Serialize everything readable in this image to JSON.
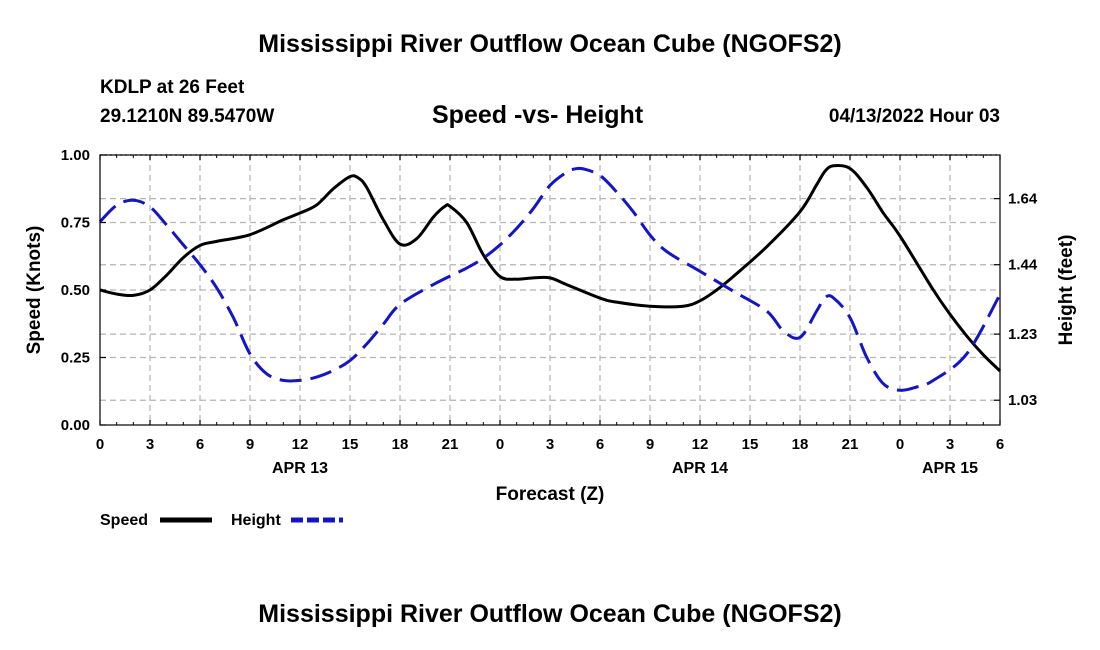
{
  "header": {
    "title": "Mississippi River Outflow Ocean Cube (NGOFS2)",
    "station": "KDLP at 26 Feet",
    "location": "29.1210N  89.5470W",
    "subtitle": "Speed -vs- Height",
    "datetime": "04/13/2022 Hour 03"
  },
  "footer": {
    "title": "Mississippi River Outflow Ocean Cube (NGOFS2)"
  },
  "chart_data": {
    "type": "line",
    "title": "Speed -vs- Height",
    "xlabel": "Forecast (Z)",
    "ylabel": "Speed (Knots)",
    "y2label": "Height (feet)",
    "x_unit": "hours from APR 13 00Z",
    "xlim": [
      0,
      54
    ],
    "ylim": [
      0,
      1.0
    ],
    "y2lim": [
      0.955,
      1.772
    ],
    "x_ticks": [
      0,
      3,
      6,
      9,
      12,
      15,
      18,
      21,
      24,
      27,
      30,
      33,
      36,
      39,
      42,
      45,
      48,
      51,
      54
    ],
    "x_tick_labels": [
      "0",
      "3",
      "6",
      "9",
      "12",
      "15",
      "18",
      "21",
      "0",
      "3",
      "6",
      "9",
      "12",
      "15",
      "18",
      "21",
      "0",
      "3",
      "6"
    ],
    "date_labels": [
      {
        "x": 12,
        "label": "APR 13"
      },
      {
        "x": 36,
        "label": "APR 14"
      },
      {
        "x": 51,
        "label": "APR 15"
      }
    ],
    "y_ticks": [
      0,
      0.25,
      0.5,
      0.75,
      1.0
    ],
    "y_tick_labels": [
      "0.00",
      "0.25",
      "0.50",
      "0.75",
      "1.00"
    ],
    "y2_ticks": [
      1.03,
      1.23,
      1.44,
      1.64
    ],
    "y2_tick_labels": [
      "1.03",
      "1.23",
      "1.44",
      "1.64"
    ],
    "grid": true,
    "legend_position": "bottom-left",
    "series": [
      {
        "name": "Speed",
        "axis": "left",
        "color": "#000000",
        "dash": "solid",
        "x": [
          0,
          1,
          2,
          3,
          4,
          5,
          6,
          7,
          9,
          11,
          12,
          13,
          14,
          15,
          15.5,
          16,
          17,
          18,
          19,
          20,
          20.7,
          21,
          22,
          23,
          24,
          25,
          26,
          27,
          28,
          30,
          31,
          33,
          35,
          36,
          37,
          38,
          40,
          42,
          43,
          43.5,
          44,
          45,
          46,
          47,
          48,
          50,
          51,
          52,
          53,
          54
        ],
        "y": [
          0.5,
          0.485,
          0.48,
          0.5,
          0.555,
          0.62,
          0.665,
          0.68,
          0.705,
          0.76,
          0.785,
          0.815,
          0.875,
          0.92,
          0.915,
          0.88,
          0.76,
          0.67,
          0.69,
          0.77,
          0.81,
          0.81,
          0.75,
          0.63,
          0.55,
          0.54,
          0.545,
          0.545,
          0.52,
          0.47,
          0.455,
          0.44,
          0.44,
          0.46,
          0.5,
          0.55,
          0.66,
          0.79,
          0.89,
          0.94,
          0.96,
          0.95,
          0.88,
          0.785,
          0.7,
          0.5,
          0.41,
          0.33,
          0.26,
          0.2
        ]
      },
      {
        "name": "Height",
        "axis": "right",
        "color": "#1414c8",
        "dash": "dashed",
        "x": [
          0,
          1,
          2,
          3,
          4,
          5,
          6,
          7,
          8,
          9,
          10,
          11,
          12,
          13,
          14,
          15,
          16,
          17,
          18,
          20,
          22,
          23,
          24,
          25,
          26,
          27,
          28,
          28.5,
          29,
          30,
          31,
          32,
          33,
          34,
          36,
          38,
          40,
          41,
          42,
          43,
          43.5,
          44,
          45,
          46,
          47,
          48,
          49,
          50,
          52,
          54
        ],
        "y": [
          1.57,
          1.62,
          1.635,
          1.615,
          1.56,
          1.5,
          1.44,
          1.37,
          1.28,
          1.17,
          1.11,
          1.09,
          1.09,
          1.1,
          1.12,
          1.15,
          1.2,
          1.26,
          1.32,
          1.38,
          1.43,
          1.46,
          1.5,
          1.55,
          1.61,
          1.68,
          1.72,
          1.73,
          1.73,
          1.71,
          1.66,
          1.6,
          1.53,
          1.48,
          1.42,
          1.36,
          1.3,
          1.24,
          1.22,
          1.3,
          1.34,
          1.34,
          1.28,
          1.16,
          1.08,
          1.06,
          1.07,
          1.09,
          1.17,
          1.35
        ]
      }
    ]
  }
}
